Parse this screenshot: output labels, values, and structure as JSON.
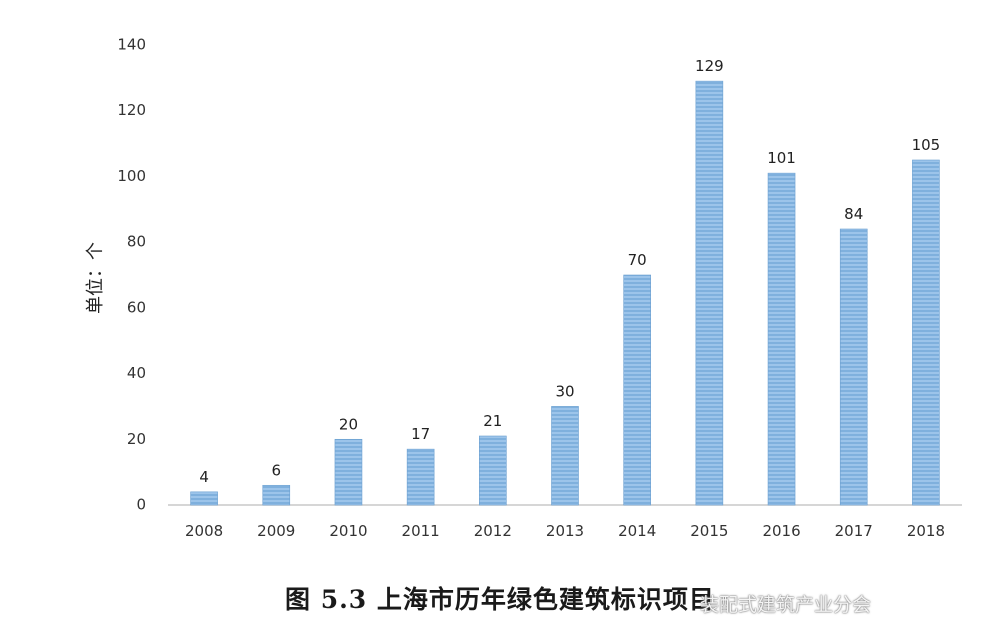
{
  "chart_data": {
    "type": "bar",
    "categories": [
      "2008",
      "2009",
      "2010",
      "2011",
      "2012",
      "2013",
      "2014",
      "2015",
      "2016",
      "2017",
      "2018"
    ],
    "values": [
      4,
      6,
      20,
      17,
      21,
      30,
      70,
      129,
      101,
      84,
      105
    ],
    "data_labels": [
      "4",
      "6",
      "20",
      "17",
      "21",
      "30",
      "70",
      "129",
      "101",
      "84",
      "105"
    ],
    "ylabel": "单位：个",
    "ylim": [
      0,
      140
    ],
    "yticks": [
      0,
      20,
      40,
      60,
      80,
      100,
      120,
      140
    ],
    "grid": false,
    "bar_color": "#7fb0dd",
    "bar_stripe_color": "#9cc4ea"
  },
  "caption": "图 5.3 上海市历年绿色建筑标识项目",
  "watermark": "装配式建筑产业分会"
}
